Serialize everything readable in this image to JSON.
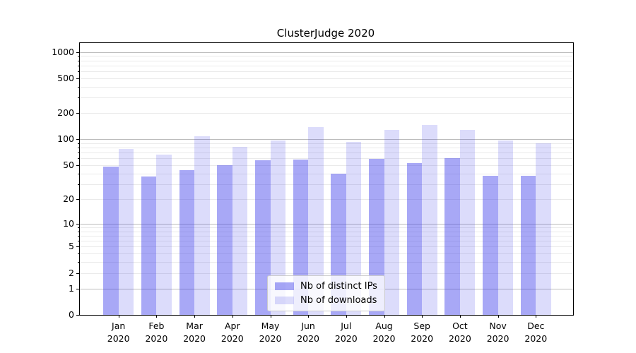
{
  "chart_data": {
    "type": "bar",
    "title": "ClusterJudge 2020",
    "categories": [
      "Jan",
      "Feb",
      "Mar",
      "Apr",
      "May",
      "Jun",
      "Jul",
      "Aug",
      "Sep",
      "Oct",
      "Nov",
      "Dec"
    ],
    "x_tick_year": "2020",
    "series": [
      {
        "name": "Nb of distinct IPs",
        "color": "rgba(62,62,235,0.45)",
        "values": [
          48,
          37,
          44,
          50,
          57,
          58,
          40,
          59,
          53,
          61,
          38,
          38
        ]
      },
      {
        "name": "Nb of downloads",
        "color": "rgba(62,62,235,0.18)",
        "values": [
          77,
          67,
          108,
          82,
          96,
          137,
          94,
          128,
          147,
          129,
          97,
          90
        ]
      }
    ],
    "y_scale": "log1p",
    "y_ticks": [
      0,
      1,
      2,
      5,
      10,
      20,
      50,
      100,
      200,
      500,
      1000
    ],
    "ylim": [
      0,
      1200
    ],
    "grid": true,
    "legend_position": "lower center",
    "colors": {
      "bar_distinct_ips_on_white": "#a3a3f5",
      "bar_downloads_on_white": "#dcdcfb",
      "grid_major": "#bcbcbc",
      "grid_minor": "#eaeaea",
      "spine": "#000000",
      "legend_border": "#cccccc"
    }
  }
}
